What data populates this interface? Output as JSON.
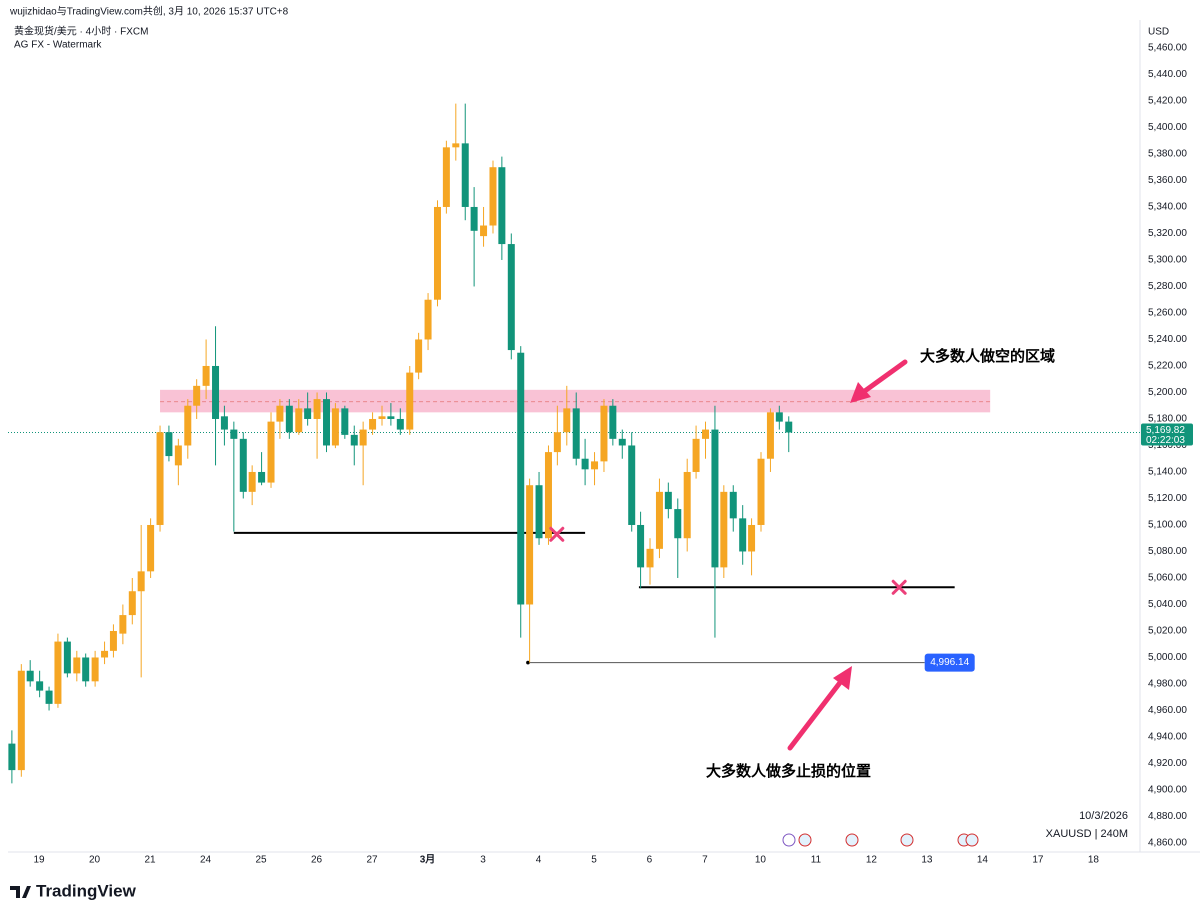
{
  "header": {
    "credit": "wujizhidao与TradingView.com共创, 3月 10, 2026 15:37 UTC+8",
    "symbol": "黄金现货/美元 · 4小时 · FXCM",
    "indicator": "AG FX - Watermark"
  },
  "chart_data": {
    "type": "candlestick",
    "currency": "USD",
    "up_color": "#f5a623",
    "down_color": "#11947a",
    "x": [
      -0.49,
      -0.32,
      -0.16,
      0.01,
      0.18,
      0.34,
      0.51,
      0.68,
      0.84,
      1.01,
      1.18,
      1.34,
      1.51,
      1.68,
      1.84,
      2.01,
      2.18,
      2.34,
      2.51,
      2.68,
      2.84,
      3.01,
      3.18,
      3.34,
      3.51,
      3.68,
      3.84,
      4.01,
      4.18,
      4.34,
      4.51,
      4.68,
      4.84,
      5.01,
      5.18,
      5.34,
      5.51,
      5.68,
      5.84,
      6.01,
      6.18,
      6.34,
      6.51,
      6.68,
      6.84,
      7.01,
      7.18,
      7.34,
      7.51,
      7.68,
      7.84,
      8.01,
      8.18,
      8.34,
      8.51,
      8.68,
      8.84,
      9.01,
      9.18,
      9.34,
      9.51,
      9.68,
      9.84,
      10.01,
      10.18,
      10.34,
      10.51,
      10.68,
      10.84,
      11.01,
      11.18,
      11.34,
      11.51,
      11.68,
      11.84,
      12.01,
      12.18,
      12.34,
      12.51,
      12.68,
      12.84,
      13.01,
      13.18,
      13.34,
      13.51
    ],
    "open": [
      4935,
      4915,
      4990,
      4982,
      4975,
      4965,
      5012,
      4988,
      5000,
      4982,
      5000,
      5005,
      5018,
      5032,
      5050,
      5065,
      5100,
      5170,
      5145,
      5160,
      5190,
      5205,
      5220,
      5182,
      5172,
      5165,
      5125,
      5140,
      5132,
      5178,
      5190,
      5170,
      5188,
      5180,
      5195,
      5160,
      5188,
      5168,
      5160,
      5172,
      5180,
      5182,
      5180,
      5172,
      5215,
      5240,
      5270,
      5340,
      5385,
      5388,
      5340,
      5318,
      5326,
      5370,
      5312,
      5230,
      5040,
      5130,
      5090,
      5155,
      5170,
      5188,
      5150,
      5142,
      5148,
      5190,
      5165,
      5160,
      5100,
      5068,
      5082,
      5125,
      5112,
      5090,
      5140,
      5165,
      5172,
      5068,
      5125,
      5105,
      5080,
      5100,
      5150,
      5185,
      5178
    ],
    "high": [
      4945,
      4995,
      4998,
      4990,
      4978,
      5018,
      5015,
      5005,
      5003,
      5005,
      5012,
      5025,
      5040,
      5060,
      5100,
      5105,
      5175,
      5175,
      5165,
      5195,
      5210,
      5240,
      5250,
      5190,
      5178,
      5170,
      5145,
      5155,
      5185,
      5195,
      5195,
      5195,
      5200,
      5200,
      5200,
      5192,
      5190,
      5175,
      5178,
      5185,
      5190,
      5192,
      5188,
      5220,
      5245,
      5275,
      5345,
      5390,
      5418,
      5418,
      5355,
      5340,
      5375,
      5378,
      5320,
      5235,
      5135,
      5140,
      5160,
      5190,
      5205,
      5200,
      5165,
      5155,
      5195,
      5195,
      5172,
      5170,
      5110,
      5090,
      5135,
      5132,
      5120,
      5150,
      5175,
      5178,
      5190,
      5130,
      5130,
      5115,
      5105,
      5155,
      5188,
      5190,
      5182
    ],
    "low": [
      4905,
      4910,
      4978,
      4970,
      4960,
      4962,
      4985,
      4982,
      4978,
      4978,
      4995,
      5000,
      5010,
      5025,
      4985,
      5060,
      5095,
      5148,
      5130,
      5150,
      5180,
      5195,
      5145,
      5160,
      5095,
      5120,
      5115,
      5130,
      5128,
      5165,
      5165,
      5168,
      5175,
      5150,
      5155,
      5158,
      5165,
      5145,
      5130,
      5168,
      5175,
      5175,
      5168,
      5168,
      5210,
      5232,
      5265,
      5335,
      5375,
      5330,
      5280,
      5310,
      5320,
      5300,
      5225,
      5015,
      4996.14,
      5085,
      5085,
      5145,
      5160,
      5145,
      5130,
      5130,
      5140,
      5160,
      5150,
      5095,
      5052,
      5055,
      5075,
      5105,
      5060,
      5080,
      5135,
      5150,
      5015,
      5060,
      5095,
      5070,
      5062,
      5095,
      5140,
      5172,
      5155
    ],
    "close": [
      4915,
      4990,
      4982,
      4975,
      4965,
      5012,
      4988,
      5000,
      4982,
      5000,
      5005,
      5020,
      5032,
      5050,
      5065,
      5100,
      5170,
      5152,
      5160,
      5190,
      5205,
      5220,
      5180,
      5172,
      5165,
      5125,
      5140,
      5132,
      5178,
      5190,
      5170,
      5188,
      5180,
      5195,
      5160,
      5188,
      5168,
      5160,
      5172,
      5180,
      5182,
      5180,
      5172,
      5215,
      5240,
      5270,
      5340,
      5385,
      5388,
      5340,
      5322,
      5326,
      5370,
      5312,
      5232,
      5040,
      5130,
      5090,
      5155,
      5170,
      5188,
      5150,
      5142,
      5148,
      5190,
      5165,
      5160,
      5100,
      5068,
      5082,
      5125,
      5112,
      5090,
      5140,
      5165,
      5172,
      5068,
      5125,
      5105,
      5080,
      5100,
      5150,
      5185,
      5178,
      5169.82
    ],
    "xlim": [
      -0.56,
      19.84
    ],
    "xticks": [
      {
        "value": 0,
        "label": "19"
      },
      {
        "value": 1,
        "label": "20"
      },
      {
        "value": 2,
        "label": "21"
      },
      {
        "value": 3,
        "label": "24"
      },
      {
        "value": 4,
        "label": "25"
      },
      {
        "value": 5,
        "label": "26"
      },
      {
        "value": 6,
        "label": "27"
      },
      {
        "value": 7,
        "label": "3月"
      },
      {
        "value": 8,
        "label": "3"
      },
      {
        "value": 9,
        "label": "4"
      },
      {
        "value": 10,
        "label": "5"
      },
      {
        "value": 11,
        "label": "6"
      },
      {
        "value": 12,
        "label": "7"
      },
      {
        "value": 13,
        "label": "10"
      },
      {
        "value": 14,
        "label": "11"
      },
      {
        "value": 15,
        "label": "12"
      },
      {
        "value": 16,
        "label": "13"
      },
      {
        "value": 17,
        "label": "14"
      },
      {
        "value": 18,
        "label": "17"
      },
      {
        "value": 19,
        "label": "18"
      }
    ],
    "ylim": [
      4853.2,
      5481.1
    ],
    "yticks": [
      {
        "value": 4860,
        "label": "4,860.00"
      },
      {
        "value": 4880,
        "label": "4,880.00"
      },
      {
        "value": 4900,
        "label": "4,900.00"
      },
      {
        "value": 4920,
        "label": "4,920.00"
      },
      {
        "value": 4940,
        "label": "4,940.00"
      },
      {
        "value": 4960,
        "label": "4,960.00"
      },
      {
        "value": 4980,
        "label": "4,980.00"
      },
      {
        "value": 5000,
        "label": "5,000.00"
      },
      {
        "value": 5020,
        "label": "5,020.00"
      },
      {
        "value": 5040,
        "label": "5,040.00"
      },
      {
        "value": 5060,
        "label": "5,060.00"
      },
      {
        "value": 5080,
        "label": "5,080.00"
      },
      {
        "value": 5100,
        "label": "5,100.00"
      },
      {
        "value": 5120,
        "label": "5,120.00"
      },
      {
        "value": 5140,
        "label": "5,140.00"
      },
      {
        "value": 5160,
        "label": "5,160.00"
      },
      {
        "value": 5180,
        "label": "5,180.00"
      },
      {
        "value": 5200,
        "label": "5,200.00"
      },
      {
        "value": 5220,
        "label": "5,220.00"
      },
      {
        "value": 5240,
        "label": "5,240.00"
      },
      {
        "value": 5260,
        "label": "5,260.00"
      },
      {
        "value": 5280,
        "label": "5,280.00"
      },
      {
        "value": 5300,
        "label": "5,300.00"
      },
      {
        "value": 5320,
        "label": "5,320.00"
      },
      {
        "value": 5340,
        "label": "5,340.00"
      },
      {
        "value": 5360,
        "label": "5,360.00"
      },
      {
        "value": 5380,
        "label": "5,380.00"
      },
      {
        "value": 5400,
        "label": "5,400.00"
      },
      {
        "value": 5420,
        "label": "5,420.00"
      },
      {
        "value": 5440,
        "label": "5,440.00"
      },
      {
        "value": 5460,
        "label": "5,460.00"
      }
    ],
    "last_price": {
      "value": 5169.82,
      "label": "5,169.82"
    },
    "countdown": "02:22:03",
    "zone": {
      "low": 5185,
      "high": 5202,
      "mid": 5193,
      "x": [
        2.18,
        17.14
      ],
      "color": "#f8bbd0"
    },
    "levels": [
      {
        "price": 5094,
        "x": [
          3.51,
          9.84
        ]
      },
      {
        "price": 5053,
        "x": [
          10.81,
          16.5
        ]
      }
    ],
    "low_marker": {
      "value": 4996.14,
      "label": "4,996.14",
      "x": [
        8.81,
        15.96
      ]
    },
    "crosses": [
      {
        "x": 9.33,
        "price": 5093
      },
      {
        "x": 15.5,
        "price": 5053
      }
    ],
    "annotations": [
      "大多数人做空的区域",
      "大多数人做多止损的位置"
    ],
    "date": "10/3/2026",
    "ticker": "XAUUSD | 240M"
  },
  "footer": {
    "brand": "TradingView"
  }
}
